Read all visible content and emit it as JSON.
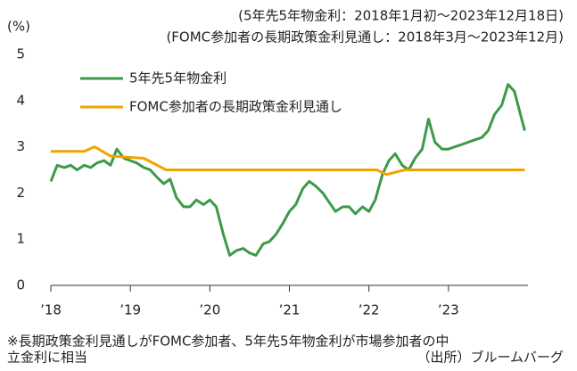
{
  "chart_data": {
    "type": "line",
    "subtitles": [
      "(5年先5年物金利：2018年1月初～2023年12月18日)",
      "(FOMC参加者の長期政策金利見通し：2018年3月～2023年12月)"
    ],
    "y_label": "(%)",
    "xlim": [
      2018,
      2024
    ],
    "xticks": [
      {
        "value": 2018,
        "label": "’18"
      },
      {
        "value": 2019,
        "label": "’19"
      },
      {
        "value": 2020,
        "label": "’20"
      },
      {
        "value": 2021,
        "label": "’21"
      },
      {
        "value": 2022,
        "label": "’22"
      },
      {
        "value": 2023,
        "label": "’23"
      }
    ],
    "ylim": [
      0,
      5
    ],
    "yticks": [
      0,
      1,
      2,
      3,
      4,
      5
    ],
    "grid": false,
    "legend": "upper left",
    "series": [
      {
        "name": "5年先5年物金利",
        "color": "#3c9a48",
        "x": [
          2018.0,
          2018.08,
          2018.17,
          2018.25,
          2018.33,
          2018.42,
          2018.5,
          2018.58,
          2018.67,
          2018.75,
          2018.83,
          2018.92,
          2019.0,
          2019.08,
          2019.17,
          2019.25,
          2019.33,
          2019.42,
          2019.5,
          2019.58,
          2019.67,
          2019.75,
          2019.83,
          2019.92,
          2020.0,
          2020.08,
          2020.17,
          2020.25,
          2020.33,
          2020.42,
          2020.5,
          2020.58,
          2020.67,
          2020.75,
          2020.83,
          2020.92,
          2021.0,
          2021.08,
          2021.17,
          2021.25,
          2021.33,
          2021.42,
          2021.5,
          2021.58,
          2021.67,
          2021.75,
          2021.83,
          2021.92,
          2022.0,
          2022.08,
          2022.17,
          2022.25,
          2022.33,
          2022.42,
          2022.5,
          2022.58,
          2022.67,
          2022.75,
          2022.83,
          2022.92,
          2023.0,
          2023.08,
          2023.17,
          2023.25,
          2023.33,
          2023.42,
          2023.5,
          2023.58,
          2023.67,
          2023.75,
          2023.83,
          2023.96
        ],
        "values": [
          2.25,
          2.6,
          2.55,
          2.6,
          2.5,
          2.6,
          2.55,
          2.65,
          2.7,
          2.6,
          2.95,
          2.75,
          2.7,
          2.65,
          2.55,
          2.5,
          2.35,
          2.2,
          2.3,
          1.9,
          1.7,
          1.7,
          1.85,
          1.75,
          1.85,
          1.7,
          1.1,
          0.65,
          0.75,
          0.8,
          0.7,
          0.65,
          0.9,
          0.95,
          1.1,
          1.35,
          1.6,
          1.75,
          2.1,
          2.25,
          2.15,
          2.0,
          1.8,
          1.6,
          1.7,
          1.7,
          1.55,
          1.7,
          1.6,
          1.85,
          2.4,
          2.7,
          2.85,
          2.6,
          2.5,
          2.75,
          2.95,
          3.6,
          3.1,
          2.95,
          2.95,
          3.0,
          3.05,
          3.1,
          3.15,
          3.2,
          3.35,
          3.7,
          3.9,
          4.35,
          4.2,
          3.35
        ]
      },
      {
        "name": "FOMC参加者の長期政策金利見通し",
        "color": "#f0a400",
        "x": [
          2018.0,
          2018.42,
          2018.55,
          2018.75,
          2019.17,
          2019.45,
          2022.1,
          2022.22,
          2022.45,
          2023.96
        ],
        "values": [
          2.9,
          2.9,
          3.0,
          2.8,
          2.75,
          2.5,
          2.5,
          2.4,
          2.5,
          2.5
        ]
      }
    ],
    "notes": [
      "※長期政策金利見通しがFOMC参加者、5年先5年物金利が市場参加者の中",
      "立金利に相当"
    ],
    "source": "（出所）ブルームバーグ"
  }
}
